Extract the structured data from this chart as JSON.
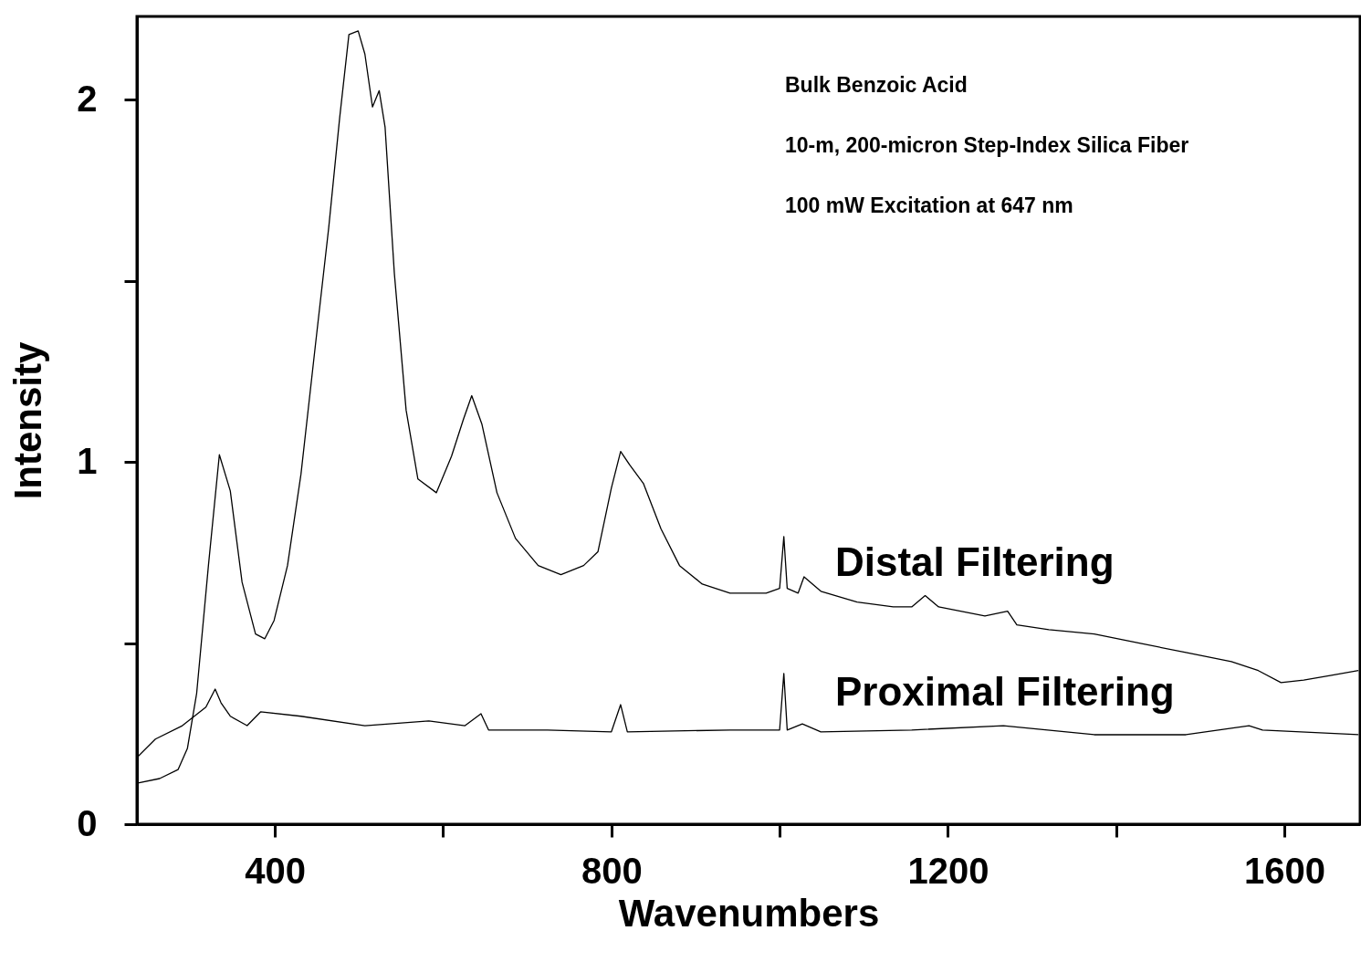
{
  "chart_data": {
    "type": "line",
    "xlabel": "Wavenumbers",
    "ylabel": "Intensity",
    "annotations": [
      "Bulk Benzoic Acid",
      "10-m, 200-micron Step-Index Silica Fiber",
      "100 mW Excitation at 647 nm"
    ],
    "xlim": [
      236,
      1690
    ],
    "ylim": [
      0,
      2.23
    ],
    "xticks": [
      400,
      {
        "value": 600,
        "label": null
      },
      800,
      {
        "value": 1000,
        "label": null
      },
      1200,
      {
        "value": 1400,
        "label": null
      },
      1600
    ],
    "yticks": [
      0,
      {
        "value": 0.5,
        "label": null
      },
      1,
      {
        "value": 1.5,
        "label": null
      },
      2
    ],
    "grid": false,
    "marker": "none",
    "line_style": "solid",
    "series": [
      {
        "name": "Distal Filtering",
        "color": "#000000",
        "x": [
          236,
          263,
          285,
          296,
          307,
          321,
          334,
          347,
          361,
          377,
          388,
          399,
          415,
          431,
          448,
          464,
          477,
          488,
          499,
          507,
          516,
          524,
          531,
          542,
          556,
          570,
          592,
          610,
          624,
          634,
          646,
          664,
          686,
          713,
          740,
          767,
          784,
          800,
          811,
          822,
          838,
          859,
          881,
          908,
          941,
          984,
          1000,
          1005,
          1009,
          1022,
          1029,
          1049,
          1092,
          1135,
          1157,
          1173,
          1189,
          1244,
          1271,
          1282,
          1320,
          1374,
          1429,
          1483,
          1537,
          1569,
          1596,
          1623,
          1656,
          1688
        ],
        "values": [
          0.113,
          0.126,
          0.151,
          0.209,
          0.361,
          0.714,
          1.02,
          0.92,
          0.668,
          0.525,
          0.512,
          0.562,
          0.714,
          0.966,
          1.319,
          1.647,
          1.95,
          2.18,
          2.19,
          2.126,
          1.98,
          2.025,
          1.924,
          1.521,
          1.143,
          0.953,
          0.915,
          1.016,
          1.117,
          1.183,
          1.105,
          0.915,
          0.789,
          0.714,
          0.689,
          0.714,
          0.752,
          0.928,
          1.029,
          0.991,
          0.941,
          0.815,
          0.714,
          0.663,
          0.638,
          0.638,
          0.651,
          0.794,
          0.651,
          0.638,
          0.683,
          0.643,
          0.613,
          0.6,
          0.6,
          0.631,
          0.6,
          0.575,
          0.588,
          0.55,
          0.537,
          0.525,
          0.499,
          0.474,
          0.449,
          0.424,
          0.391,
          0.398,
          0.411,
          0.424
        ]
      },
      {
        "name": "Proximal Filtering",
        "color": "#000000",
        "x": [
          236,
          258,
          290,
          318,
          329,
          336,
          347,
          367,
          383,
          431,
          507,
          583,
          626,
          645,
          654,
          724,
          800,
          811,
          819,
          941,
          1000,
          1005,
          1009,
          1027,
          1049,
          1157,
          1266,
          1374,
          1483,
          1558,
          1574,
          1688
        ],
        "values": [
          0.184,
          0.235,
          0.272,
          0.323,
          0.373,
          0.335,
          0.298,
          0.272,
          0.31,
          0.298,
          0.272,
          0.285,
          0.272,
          0.305,
          0.26,
          0.26,
          0.255,
          0.33,
          0.255,
          0.26,
          0.26,
          0.416,
          0.26,
          0.277,
          0.255,
          0.26,
          0.272,
          0.247,
          0.247,
          0.272,
          0.26,
          0.247
        ]
      }
    ]
  }
}
